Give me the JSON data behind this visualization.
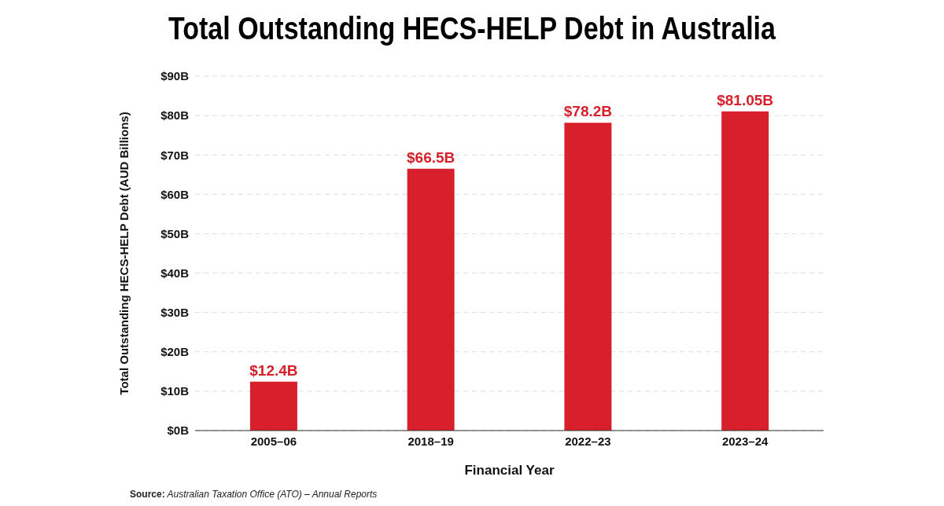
{
  "chart_data": {
    "type": "bar",
    "title": "Total Outstanding HECS-HELP Debt in Australia",
    "xlabel": "Financial Year",
    "ylabel": "Total Outstanding HECS-HELP Debt (AUD Billions)",
    "categories": [
      "2005–06",
      "2018–19",
      "2022–23",
      "2023–24"
    ],
    "values": [
      12.4,
      66.5,
      78.2,
      81.05
    ],
    "color": "#d7202b",
    "value_labels": [
      "$12.4B",
      "$66.5B",
      "$78.2B",
      "$81.05B"
    ],
    "ylim": [
      0,
      90
    ],
    "yticks": [
      {
        "value": 0,
        "label": "$0B"
      },
      {
        "value": 10,
        "label": "$10B"
      },
      {
        "value": 20,
        "label": "$20B"
      },
      {
        "value": 30,
        "label": "$30B"
      },
      {
        "value": 40,
        "label": "$40B"
      },
      {
        "value": 50,
        "label": "$50B"
      },
      {
        "value": 60,
        "label": "$60B"
      },
      {
        "value": 70,
        "label": "$70B"
      },
      {
        "value": 80,
        "label": "$80B"
      },
      {
        "value": 90,
        "label": "$90B"
      }
    ],
    "grid": "y",
    "annotations": [
      "Source: Australian Taxation Office (ATO) – Annual Reports"
    ]
  }
}
